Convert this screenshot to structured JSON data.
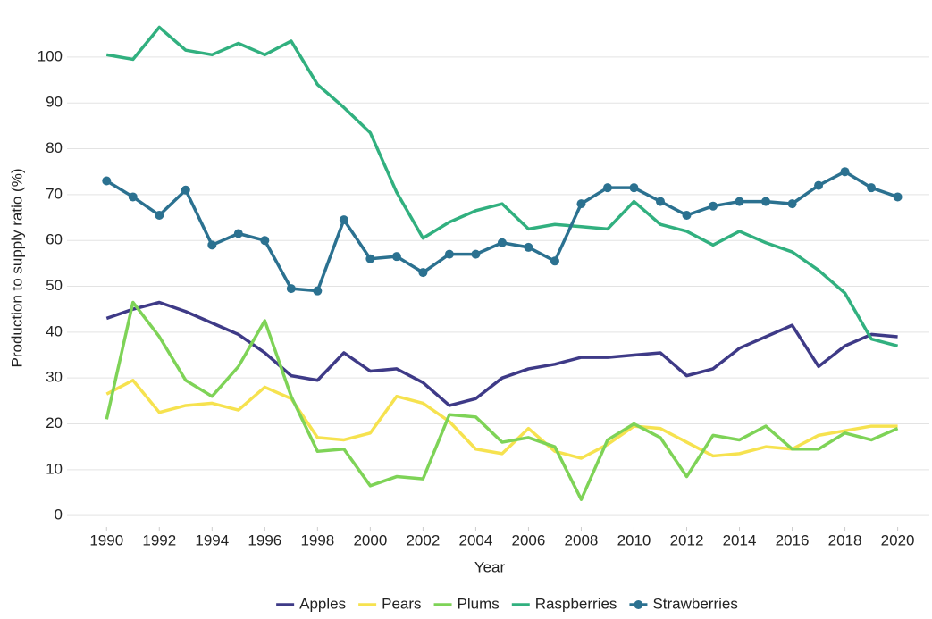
{
  "chart_data": {
    "type": "line",
    "x_label": "Year",
    "y_label": "Production to supply ratio (%)",
    "x": [
      1990,
      1991,
      1992,
      1993,
      1994,
      1995,
      1996,
      1997,
      1998,
      1999,
      2000,
      2001,
      2002,
      2003,
      2004,
      2005,
      2006,
      2007,
      2008,
      2009,
      2010,
      2011,
      2012,
      2013,
      2014,
      2015,
      2016,
      2017,
      2018,
      2019,
      2020
    ],
    "xlim": [
      1988.5,
      2021.2
    ],
    "xticks": [
      1990,
      1992,
      1994,
      1996,
      1998,
      2000,
      2002,
      2004,
      2006,
      2008,
      2010,
      2012,
      2014,
      2016,
      2018,
      2020
    ],
    "ylim": [
      -2.5,
      110.5
    ],
    "yticks": [
      0,
      10,
      20,
      30,
      40,
      50,
      60,
      70,
      80,
      90,
      100
    ],
    "grid": true,
    "legend": "bottom",
    "series": [
      {
        "name": "Apples",
        "color": "#3e3a87",
        "markers": false,
        "values": [
          43,
          45,
          46.5,
          44.5,
          42,
          39.5,
          35.5,
          30.5,
          29.5,
          35.5,
          31.5,
          32,
          29,
          24,
          25.5,
          30,
          32,
          33,
          34.5,
          34.5,
          35,
          35.5,
          30.5,
          32,
          36.5,
          39,
          41.5,
          32.5,
          37,
          39.5,
          39
        ]
      },
      {
        "name": "Pears",
        "color": "#f6e24f",
        "markers": false,
        "values": [
          26.5,
          29.5,
          22.5,
          24,
          24.5,
          23,
          28,
          25.5,
          17,
          16.5,
          18,
          26,
          24.5,
          20.5,
          14.5,
          13.5,
          19,
          14,
          12.5,
          15.5,
          19.5,
          19,
          16,
          13,
          13.5,
          15,
          14.5,
          17.5,
          18.5,
          19.5,
          19.5
        ]
      },
      {
        "name": "Plums",
        "color": "#7ed357",
        "markers": false,
        "values": [
          21,
          46.5,
          39,
          29.5,
          26,
          32.5,
          42.5,
          26,
          14,
          14.5,
          6.5,
          8.5,
          8,
          22,
          21.5,
          16,
          17,
          15,
          3.5,
          16.5,
          20,
          17,
          8.5,
          17.5,
          16.5,
          19.5,
          14.5,
          14.5,
          18,
          16.5,
          19
        ]
      },
      {
        "name": "Raspberries",
        "color": "#31b07f",
        "markers": false,
        "values": [
          100.5,
          99.5,
          106.5,
          101.5,
          100.5,
          103,
          100.5,
          103.5,
          94,
          89,
          83.5,
          70.5,
          60.5,
          64,
          66.5,
          68,
          62.5,
          63.5,
          63,
          62.5,
          68.5,
          63.5,
          62,
          59,
          62,
          59.5,
          57.5,
          53.5,
          48.5,
          38.5,
          37
        ]
      },
      {
        "name": "Strawberries",
        "color": "#2b7190",
        "markers": true,
        "values": [
          73,
          69.5,
          65.5,
          71,
          59,
          61.5,
          60,
          49.5,
          49,
          64.5,
          56,
          56.5,
          53,
          57,
          57,
          59.5,
          58.5,
          55.5,
          68,
          71.5,
          71.5,
          68.5,
          65.5,
          67.5,
          68.5,
          68.5,
          68,
          72,
          75,
          71.5,
          69.5
        ]
      }
    ]
  }
}
